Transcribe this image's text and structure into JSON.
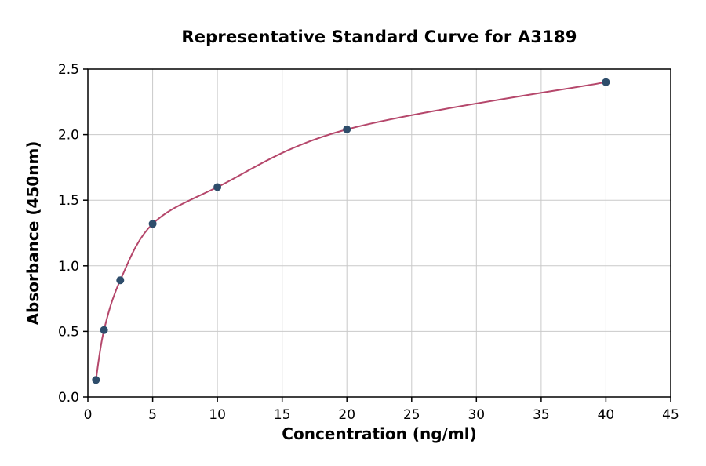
{
  "chart_data": {
    "type": "scatter",
    "title": "Representative Standard Curve for A3189",
    "xlabel": "Concentration (ng/ml)",
    "ylabel": "Absorbance (450nm)",
    "x": [
      0.625,
      1.25,
      2.5,
      5,
      10,
      20,
      40
    ],
    "y": [
      0.13,
      0.51,
      0.89,
      1.32,
      1.6,
      2.04,
      2.4
    ],
    "xlim": [
      0,
      45
    ],
    "ylim": [
      0,
      2.5
    ],
    "x_ticks": [
      0,
      5,
      10,
      15,
      20,
      25,
      30,
      35,
      40,
      45
    ],
    "y_ticks": [
      0.0,
      0.5,
      1.0,
      1.5,
      2.0,
      2.5
    ],
    "grid": true,
    "legend": "none",
    "curve_fit": "smooth curve through standard points",
    "colors": {
      "curve": "#b5476b",
      "point": "#2e4d6b",
      "grid": "#c9c9c9",
      "axis": "#000000",
      "background": "#ffffff"
    }
  }
}
